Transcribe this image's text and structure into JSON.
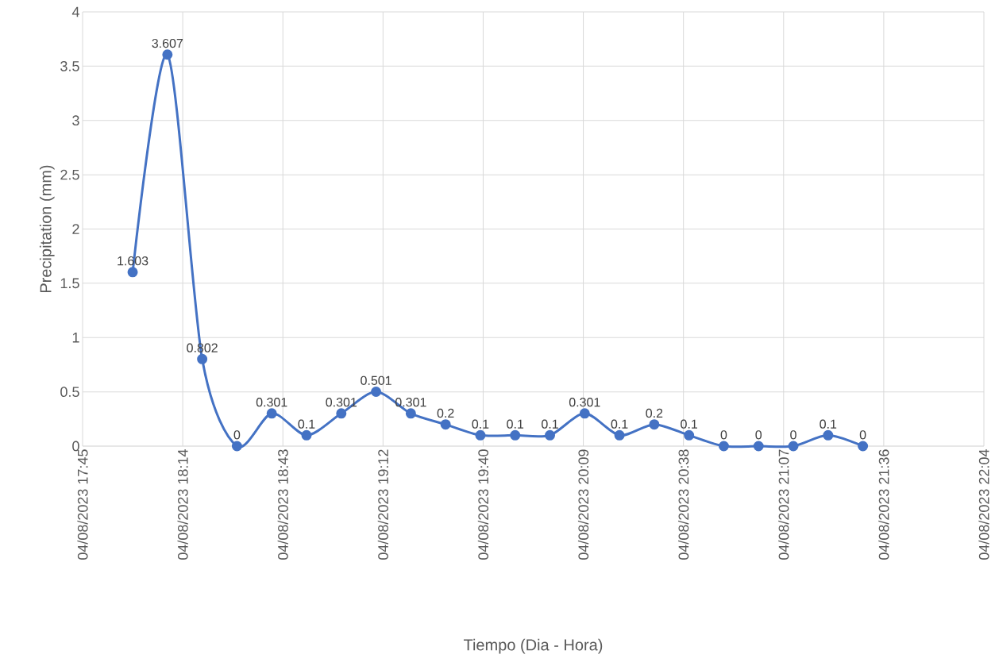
{
  "chart_data": {
    "type": "line",
    "xlabel": "Tiempo (Dia - Hora)",
    "ylabel": "Precipitation (mm)",
    "x": [
      "2023-08-04T18:00",
      "2023-08-04T18:10",
      "2023-08-04T18:20",
      "2023-08-04T18:30",
      "2023-08-04T18:40",
      "2023-08-04T18:50",
      "2023-08-04T19:00",
      "2023-08-04T19:10",
      "2023-08-04T19:20",
      "2023-08-04T19:30",
      "2023-08-04T19:40",
      "2023-08-04T19:50",
      "2023-08-04T20:00",
      "2023-08-04T20:10",
      "2023-08-04T20:20",
      "2023-08-04T20:30",
      "2023-08-04T20:40",
      "2023-08-04T20:50",
      "2023-08-04T21:00",
      "2023-08-04T21:10",
      "2023-08-04T21:20",
      "2023-08-04T21:30"
    ],
    "values": [
      1.603,
      3.607,
      0.802,
      0,
      0.301,
      0.1,
      0.301,
      0.501,
      0.301,
      0.2,
      0.1,
      0.1,
      0.1,
      0.301,
      0.1,
      0.2,
      0.1,
      0,
      0,
      0,
      0.1,
      0
    ],
    "color": "#4472c4",
    "marker": "circle",
    "line_style": "solid",
    "data_labels": true,
    "grid": true,
    "ylim": [
      0,
      4
    ],
    "yticks": [
      0,
      0.5,
      1,
      1.5,
      2,
      2.5,
      3,
      3.5,
      4
    ],
    "xlim": [
      "2023-08-04T17:45:36",
      "2023-08-04T22:04:48"
    ],
    "xticks": [
      {
        "value": "2023-08-04T17:45:36",
        "label": "04/08/2023 17:45"
      },
      {
        "value": "2023-08-04T18:14:24",
        "label": "04/08/2023 18:14"
      },
      {
        "value": "2023-08-04T18:43:12",
        "label": "04/08/2023 18:43"
      },
      {
        "value": "2023-08-04T19:12:00",
        "label": "04/08/2023 19:12"
      },
      {
        "value": "2023-08-04T19:40:48",
        "label": "04/08/2023 19:40"
      },
      {
        "value": "2023-08-04T20:09:36",
        "label": "04/08/2023 20:09"
      },
      {
        "value": "2023-08-04T20:38:24",
        "label": "04/08/2023 20:38"
      },
      {
        "value": "2023-08-04T21:07:12",
        "label": "04/08/2023 21:07"
      },
      {
        "value": "2023-08-04T21:36:00",
        "label": "04/08/2023 21:36"
      },
      {
        "value": "2023-08-04T22:04:48",
        "label": "04/08/2023 22:04"
      }
    ]
  }
}
